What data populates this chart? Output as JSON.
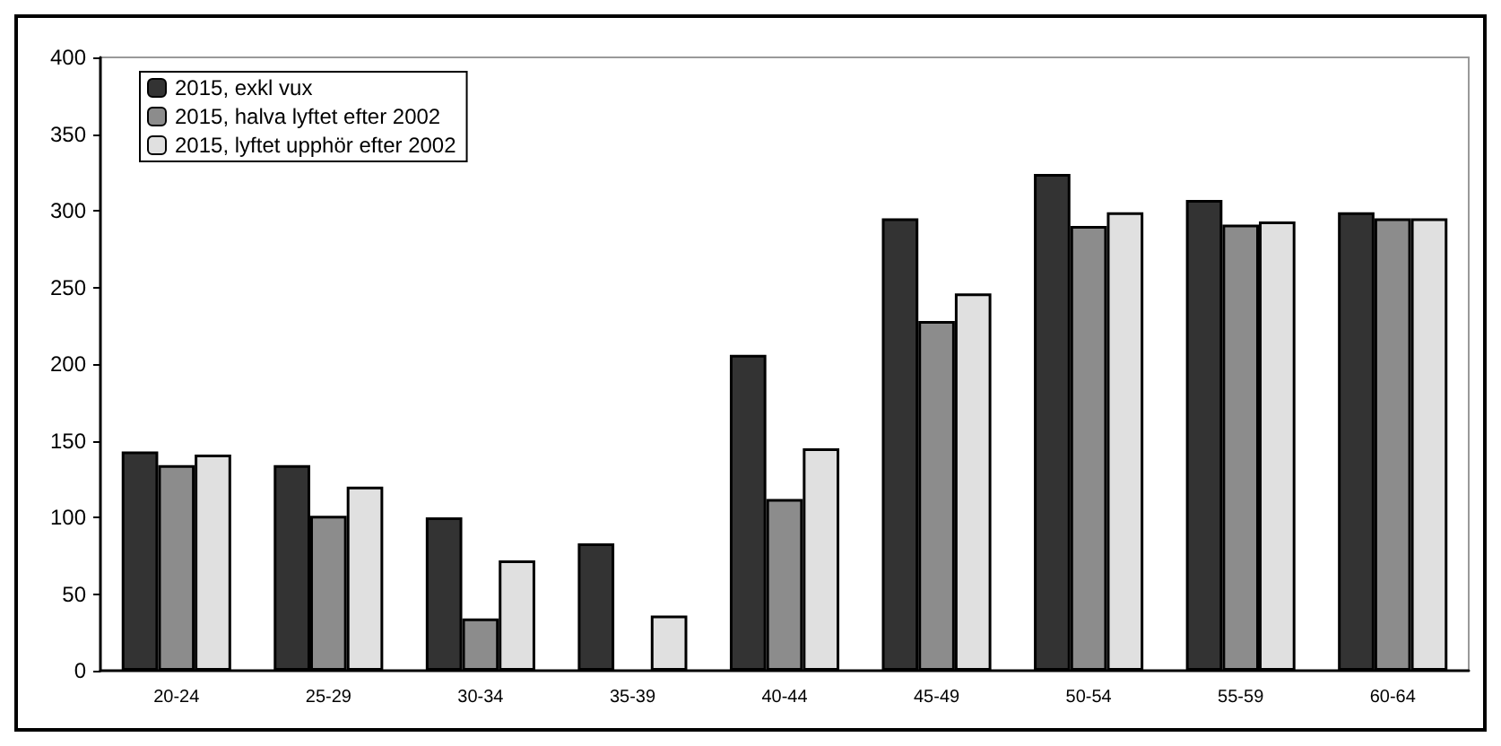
{
  "chart_data": {
    "type": "bar",
    "categories": [
      "20-24",
      "25-29",
      "30-34",
      "35-39",
      "40-44",
      "45-49",
      "50-54",
      "55-59",
      "60-64"
    ],
    "series": [
      {
        "name": "2015, exkl vux",
        "color": "#333333",
        "values": [
          143,
          134,
          100,
          83,
          206,
          295,
          324,
          307,
          299
        ]
      },
      {
        "name": "2015, halva lyftet efter 2002",
        "color": "#8c8c8c",
        "values": [
          134,
          101,
          34,
          null,
          112,
          228,
          290,
          291,
          295
        ]
      },
      {
        "name": "2015, lyftet upphör efter 2002",
        "color": "#e0e0e0",
        "values": [
          141,
          120,
          72,
          36,
          145,
          246,
          299,
          293,
          295
        ]
      }
    ],
    "ylim": [
      0,
      400
    ],
    "yticks": [
      0,
      50,
      100,
      150,
      200,
      250,
      300,
      350,
      400
    ],
    "grid": false,
    "legend": "top left"
  }
}
